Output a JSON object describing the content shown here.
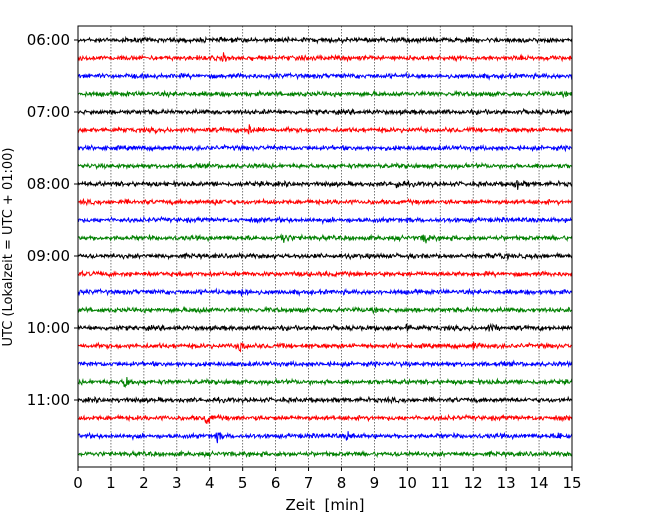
{
  "chart_data": {
    "type": "line",
    "subtype": "helicorder",
    "xlabel": "Zeit  [min]",
    "ylabel": "UTC (Lokalzeit = UTC + 01:00)",
    "xlim": [
      0,
      15
    ],
    "xticks": [
      0,
      1,
      2,
      3,
      4,
      5,
      6,
      7,
      8,
      9,
      10,
      11,
      12,
      13,
      14,
      15
    ],
    "ytick_labels": [
      "06:00",
      "07:00",
      "08:00",
      "09:00",
      "10:00",
      "11:00"
    ],
    "trace_interval_min": 15,
    "start_time": "06:00",
    "trace_count": 24,
    "trace_colors": [
      "#000000",
      "#ff0000",
      "#0000ff",
      "#008000"
    ],
    "grid": "vertical dotted",
    "events": [
      {
        "trace": 1,
        "minute": 4.4,
        "amp": 3
      },
      {
        "trace": 5,
        "minute": 5.2,
        "amp": 5
      },
      {
        "trace": 8,
        "minute": 13.3,
        "amp": 5
      },
      {
        "trace": 8,
        "minute": 9.7,
        "amp": 3
      },
      {
        "trace": 9,
        "minute": 4.2,
        "amp": 3
      },
      {
        "trace": 11,
        "minute": 6.2,
        "amp": 8
      },
      {
        "trace": 11,
        "minute": 10.5,
        "amp": 6
      },
      {
        "trace": 12,
        "minute": 12.8,
        "amp": 3
      },
      {
        "trace": 14,
        "minute": 5.0,
        "amp": 5
      },
      {
        "trace": 15,
        "minute": 3.6,
        "amp": 3
      },
      {
        "trace": 16,
        "minute": 10.0,
        "amp": 3
      },
      {
        "trace": 16,
        "minute": 12.5,
        "amp": 4
      },
      {
        "trace": 17,
        "minute": 4.9,
        "amp": 6
      },
      {
        "trace": 17,
        "minute": 12.0,
        "amp": 4
      },
      {
        "trace": 19,
        "minute": 1.4,
        "amp": 7
      },
      {
        "trace": 21,
        "minute": 3.9,
        "amp": 6
      },
      {
        "trace": 22,
        "minute": 4.2,
        "amp": 4
      },
      {
        "trace": 22,
        "minute": 8.2,
        "amp": 3
      },
      {
        "trace": 22,
        "minute": 14.6,
        "amp": 4
      }
    ]
  }
}
